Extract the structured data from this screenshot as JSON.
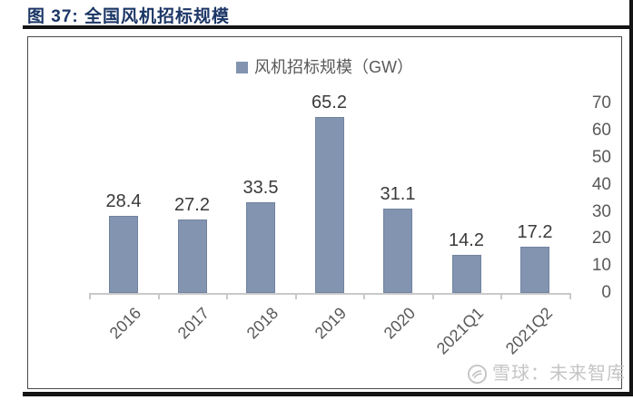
{
  "figure": {
    "title": "图 37: 全国风机招标规模",
    "watermark_text": "雪球：未来智库"
  },
  "chart_data": {
    "type": "bar",
    "title": "全国风机招标规模",
    "legend": "风机招标规模（GW）",
    "legend_position": "top-center",
    "categories": [
      "2016",
      "2017",
      "2018",
      "2019",
      "2020",
      "2021Q1",
      "2021Q2"
    ],
    "values": [
      28.4,
      27.2,
      33.5,
      65.2,
      31.1,
      14.2,
      17.2
    ],
    "unit": "GW",
    "ylim": [
      0,
      70
    ],
    "yticks": [
      0,
      10,
      20,
      30,
      40,
      50,
      60,
      70
    ],
    "y_axis_side": "right",
    "grid": false,
    "xlabel": "",
    "ylabel": ""
  },
  "colors": {
    "title_navy": "#1C3666",
    "rule_dark": "#141414",
    "frame_border": "#4A4A4A",
    "bar_fill": "#8394B0",
    "bar_edge": "#71839F",
    "axis_line": "#C9C9C9",
    "tick_label_gray": "#595959",
    "value_label_dark": "#3A3A3A",
    "watermark_gray": "#C5C5C5"
  }
}
